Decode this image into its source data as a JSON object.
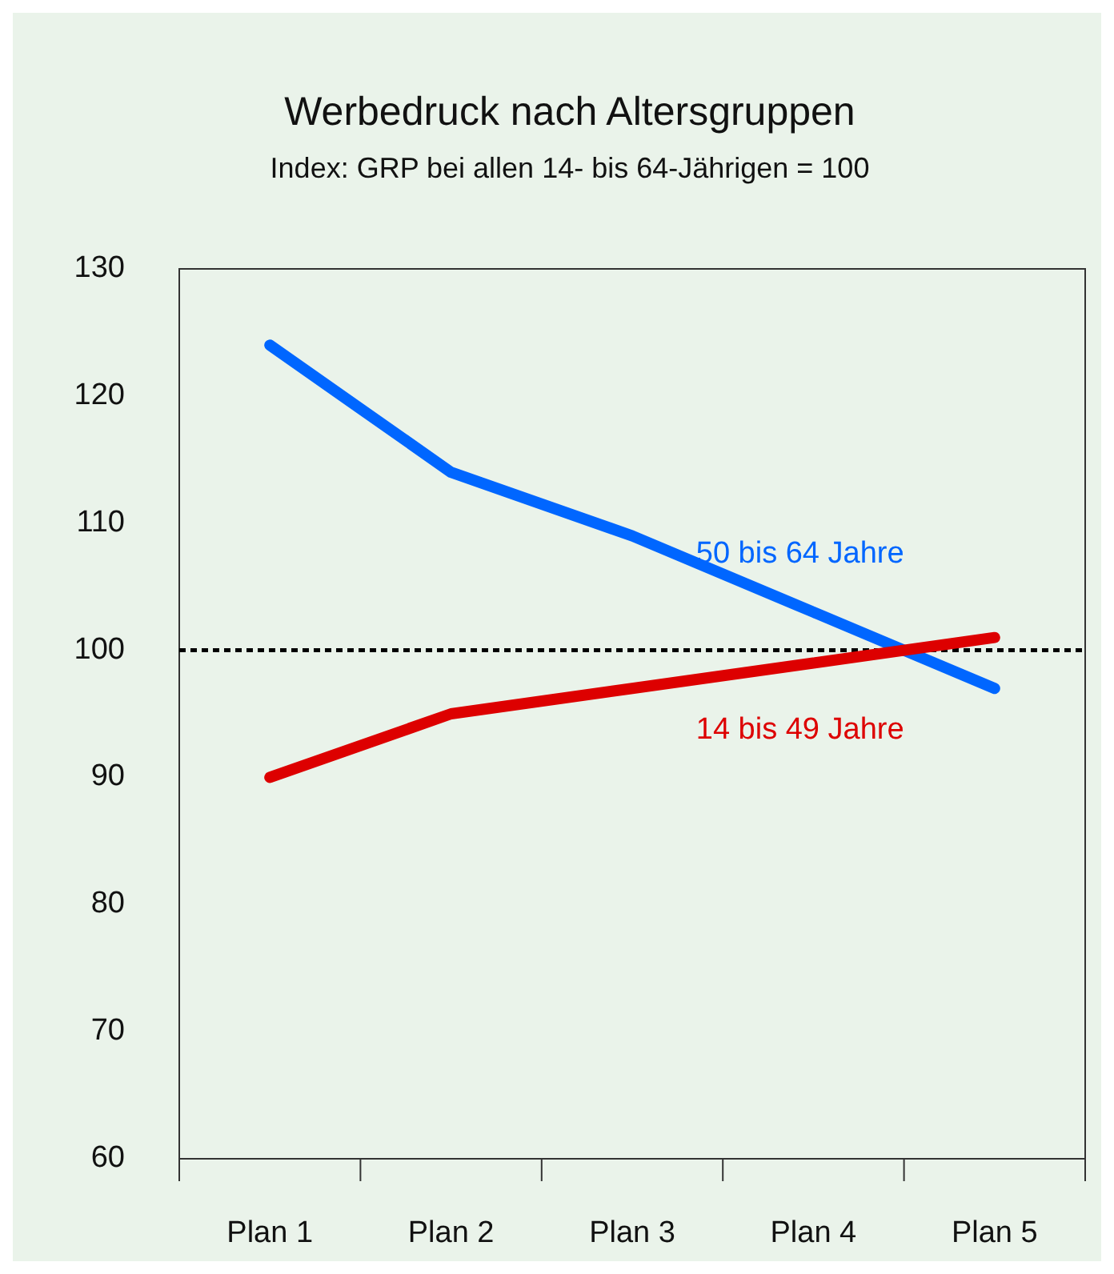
{
  "chart_data": {
    "type": "line",
    "title": "Werbedruck nach Altersgruppen",
    "subtitle": "Index: GRP bei allen 14- bis 64-Jährigen = 100",
    "categories": [
      "Plan 1",
      "Plan 2",
      "Plan 3",
      "Plan 4",
      "Plan 5"
    ],
    "series": [
      {
        "name": "50 bis 64 Jahre",
        "color": "#0066ff",
        "values": [
          124,
          114,
          109,
          103,
          97
        ]
      },
      {
        "name": "14 bis 49 Jahre",
        "color": "#dd0000",
        "values": [
          90,
          95,
          97,
          99,
          101
        ]
      }
    ],
    "ylim": [
      60,
      130
    ],
    "yticks": [
      60,
      70,
      80,
      90,
      100,
      110,
      120,
      130
    ],
    "grid": false,
    "marker": "none",
    "line_style": "solid",
    "ref_lines": [
      {
        "axis": "y",
        "value": 100,
        "label": null,
        "color": "#000000",
        "line_style": "dotted"
      }
    ]
  }
}
